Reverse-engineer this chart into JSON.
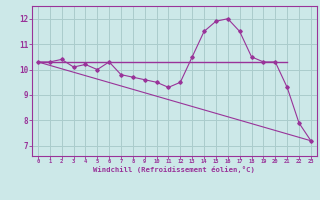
{
  "bg_color": "#cce8e8",
  "grid_color": "#aacccc",
  "line_color": "#993399",
  "x_ticks": [
    0,
    1,
    2,
    3,
    4,
    5,
    6,
    7,
    8,
    9,
    10,
    11,
    12,
    13,
    14,
    15,
    16,
    17,
    18,
    19,
    20,
    21,
    22,
    23
  ],
  "y_ticks": [
    7,
    8,
    9,
    10,
    11,
    12
  ],
  "xlim": [
    -0.5,
    23.5
  ],
  "ylim": [
    6.6,
    12.5
  ],
  "curve_x": [
    0,
    1,
    2,
    3,
    4,
    5,
    6,
    7,
    8,
    9,
    10,
    11,
    12,
    13,
    14,
    15,
    16,
    17,
    18,
    19,
    20,
    21,
    22,
    23
  ],
  "curve_y": [
    10.3,
    10.3,
    10.4,
    10.1,
    10.2,
    10.0,
    10.3,
    9.8,
    9.7,
    9.6,
    9.5,
    9.3,
    9.5,
    10.5,
    11.5,
    11.9,
    12.0,
    11.5,
    10.5,
    10.3,
    10.3,
    9.3,
    7.9,
    7.2
  ],
  "line_x": [
    0,
    23
  ],
  "line_y": [
    10.3,
    7.2
  ],
  "hline_x": [
    0,
    21
  ],
  "hline_y": [
    10.3,
    10.3
  ],
  "xlabel": "Windchill (Refroidissement éolien,°C)"
}
